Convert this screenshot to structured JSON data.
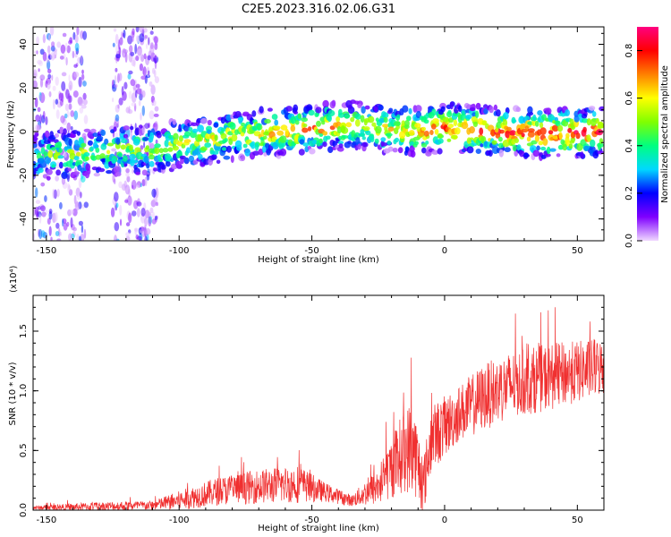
{
  "title": "C2E5.2023.316.02.06.G31",
  "chart_data": [
    {
      "type": "heatmap",
      "xlabel": "Height of straight line (km)",
      "ylabel": "Frequency (Hz)",
      "xlim": [
        -155,
        60
      ],
      "ylim": [
        -50,
        48
      ],
      "x_ticks": [
        -150,
        -100,
        -50,
        0,
        50
      ],
      "y_ticks": [
        -40,
        -20,
        0,
        20,
        40
      ],
      "colorbar": {
        "label": "Normalized spectral amplitude",
        "range": [
          0.0,
          0.9
        ],
        "ticks": [
          0.0,
          0.2,
          0.4,
          0.6,
          0.8
        ],
        "colormap": [
          "#f0d8ff",
          "#7f00ff",
          "#0000ff",
          "#00d8ff",
          "#00ff80",
          "#80ff00",
          "#ffff00",
          "#ff8000",
          "#ff0000",
          "#ff0080"
        ]
      },
      "ridge": [
        {
          "x": -150,
          "y": -11,
          "amp": 0.45
        },
        {
          "x": -130,
          "y": -9,
          "amp": 0.5
        },
        {
          "x": -110,
          "y": -8,
          "amp": 0.5
        },
        {
          "x": -95,
          "y": -5,
          "amp": 0.55
        },
        {
          "x": -80,
          "y": -2,
          "amp": 0.6
        },
        {
          "x": -60,
          "y": 0,
          "amp": 0.65
        },
        {
          "x": -45,
          "y": 2,
          "amp": 0.7
        },
        {
          "x": -35,
          "y": 3,
          "amp": 0.55
        },
        {
          "x": -20,
          "y": 1,
          "amp": 0.6
        },
        {
          "x": -10,
          "y": 0,
          "amp": 0.7
        },
        {
          "x": 0,
          "y": 2,
          "amp": 0.75
        },
        {
          "x": 20,
          "y": 0,
          "amp": 0.75
        },
        {
          "x": 40,
          "y": -1,
          "amp": 0.8
        },
        {
          "x": 60,
          "y": 0,
          "amp": 0.8
        }
      ],
      "scattered_noise_x_ranges": [
        [
          -155,
          -135
        ],
        [
          -125,
          -108
        ]
      ]
    },
    {
      "type": "line",
      "xlabel": "Height of straight line (km)",
      "ylabel": "SNR (10 * v/v)",
      "y_scale_label": "(x10⁴)",
      "xlim": [
        -155,
        60
      ],
      "ylim": [
        0,
        1.8
      ],
      "x_ticks": [
        -150,
        -100,
        -50,
        0,
        50
      ],
      "y_ticks": [
        0.0,
        0.5,
        1.0,
        1.5
      ],
      "series_color": "#f03030",
      "envelope": [
        {
          "x": -155,
          "base": 0.02,
          "amp": 0.02
        },
        {
          "x": -130,
          "base": 0.03,
          "amp": 0.05
        },
        {
          "x": -110,
          "base": 0.04,
          "amp": 0.05
        },
        {
          "x": -100,
          "base": 0.08,
          "amp": 0.1
        },
        {
          "x": -85,
          "base": 0.16,
          "amp": 0.15
        },
        {
          "x": -70,
          "base": 0.2,
          "amp": 0.18
        },
        {
          "x": -55,
          "base": 0.22,
          "amp": 0.2
        },
        {
          "x": -45,
          "base": 0.15,
          "amp": 0.1
        },
        {
          "x": -35,
          "base": 0.08,
          "amp": 0.06
        },
        {
          "x": -25,
          "base": 0.2,
          "amp": 0.2
        },
        {
          "x": -17,
          "base": 0.45,
          "amp": 0.4
        },
        {
          "x": -12,
          "base": 0.55,
          "amp": 0.5
        },
        {
          "x": -8,
          "base": 0.2,
          "amp": 0.3
        },
        {
          "x": -5,
          "base": 0.6,
          "amp": 0.35
        },
        {
          "x": 5,
          "base": 0.8,
          "amp": 0.3
        },
        {
          "x": 15,
          "base": 0.95,
          "amp": 0.35
        },
        {
          "x": 25,
          "base": 1.05,
          "amp": 0.35
        },
        {
          "x": 40,
          "base": 1.12,
          "amp": 0.35
        },
        {
          "x": 60,
          "base": 1.2,
          "amp": 0.3
        }
      ]
    }
  ]
}
